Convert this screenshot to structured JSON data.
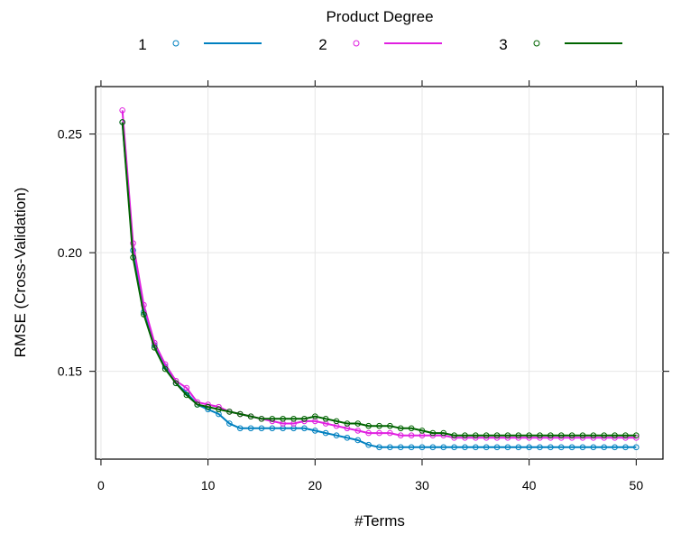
{
  "chart_data": {
    "type": "line",
    "legend_title": "Product Degree",
    "legend_position": "top",
    "xlabel": "#Terms",
    "ylabel": "RMSE (Cross-Validation)",
    "xlim": [
      -0.5,
      52.5
    ],
    "ylim": [
      0.113,
      0.27
    ],
    "xticks": [
      0,
      10,
      20,
      30,
      40,
      50
    ],
    "yticks": [
      0.15,
      0.2,
      0.25
    ],
    "ytick_labels": [
      "0.15",
      "0.20",
      "0.25"
    ],
    "grid": true,
    "markers": "open-circle",
    "x": [
      2,
      3,
      4,
      5,
      6,
      7,
      8,
      9,
      10,
      11,
      12,
      13,
      14,
      15,
      16,
      17,
      18,
      19,
      20,
      21,
      22,
      23,
      24,
      25,
      26,
      27,
      28,
      29,
      30,
      31,
      32,
      33,
      34,
      35,
      36,
      37,
      38,
      39,
      40,
      41,
      42,
      43,
      44,
      45,
      46,
      47,
      48,
      49,
      50
    ],
    "series": [
      {
        "name": "1",
        "color": "#0080C0",
        "values": [
          0.255,
          0.201,
          0.175,
          0.161,
          0.152,
          0.145,
          0.141,
          0.136,
          0.134,
          0.132,
          0.128,
          0.126,
          0.126,
          0.126,
          0.126,
          0.126,
          0.126,
          0.126,
          0.125,
          0.124,
          0.123,
          0.122,
          0.121,
          0.119,
          0.118,
          0.118,
          0.118,
          0.118,
          0.118,
          0.118,
          0.118,
          0.118,
          0.118,
          0.118,
          0.118,
          0.118,
          0.118,
          0.118,
          0.118,
          0.118,
          0.118,
          0.118,
          0.118,
          0.118,
          0.118,
          0.118,
          0.118,
          0.118,
          0.118
        ]
      },
      {
        "name": "2",
        "color": "#E020E0",
        "values": [
          0.26,
          0.204,
          0.178,
          0.162,
          0.153,
          0.146,
          0.143,
          0.137,
          0.136,
          0.135,
          0.133,
          0.132,
          0.131,
          0.13,
          0.129,
          0.128,
          0.128,
          0.129,
          0.129,
          0.128,
          0.127,
          0.126,
          0.125,
          0.124,
          0.124,
          0.124,
          0.123,
          0.123,
          0.123,
          0.123,
          0.123,
          0.122,
          0.122,
          0.122,
          0.122,
          0.122,
          0.122,
          0.122,
          0.122,
          0.122,
          0.122,
          0.122,
          0.122,
          0.122,
          0.122,
          0.122,
          0.122,
          0.122,
          0.122
        ]
      },
      {
        "name": "3",
        "color": "#006400",
        "values": [
          0.255,
          0.198,
          0.174,
          0.16,
          0.151,
          0.145,
          0.14,
          0.136,
          0.135,
          0.134,
          0.133,
          0.132,
          0.131,
          0.13,
          0.13,
          0.13,
          0.13,
          0.13,
          0.131,
          0.13,
          0.129,
          0.128,
          0.128,
          0.127,
          0.127,
          0.127,
          0.126,
          0.126,
          0.125,
          0.124,
          0.124,
          0.123,
          0.123,
          0.123,
          0.123,
          0.123,
          0.123,
          0.123,
          0.123,
          0.123,
          0.123,
          0.123,
          0.123,
          0.123,
          0.123,
          0.123,
          0.123,
          0.123,
          0.123
        ]
      }
    ]
  }
}
